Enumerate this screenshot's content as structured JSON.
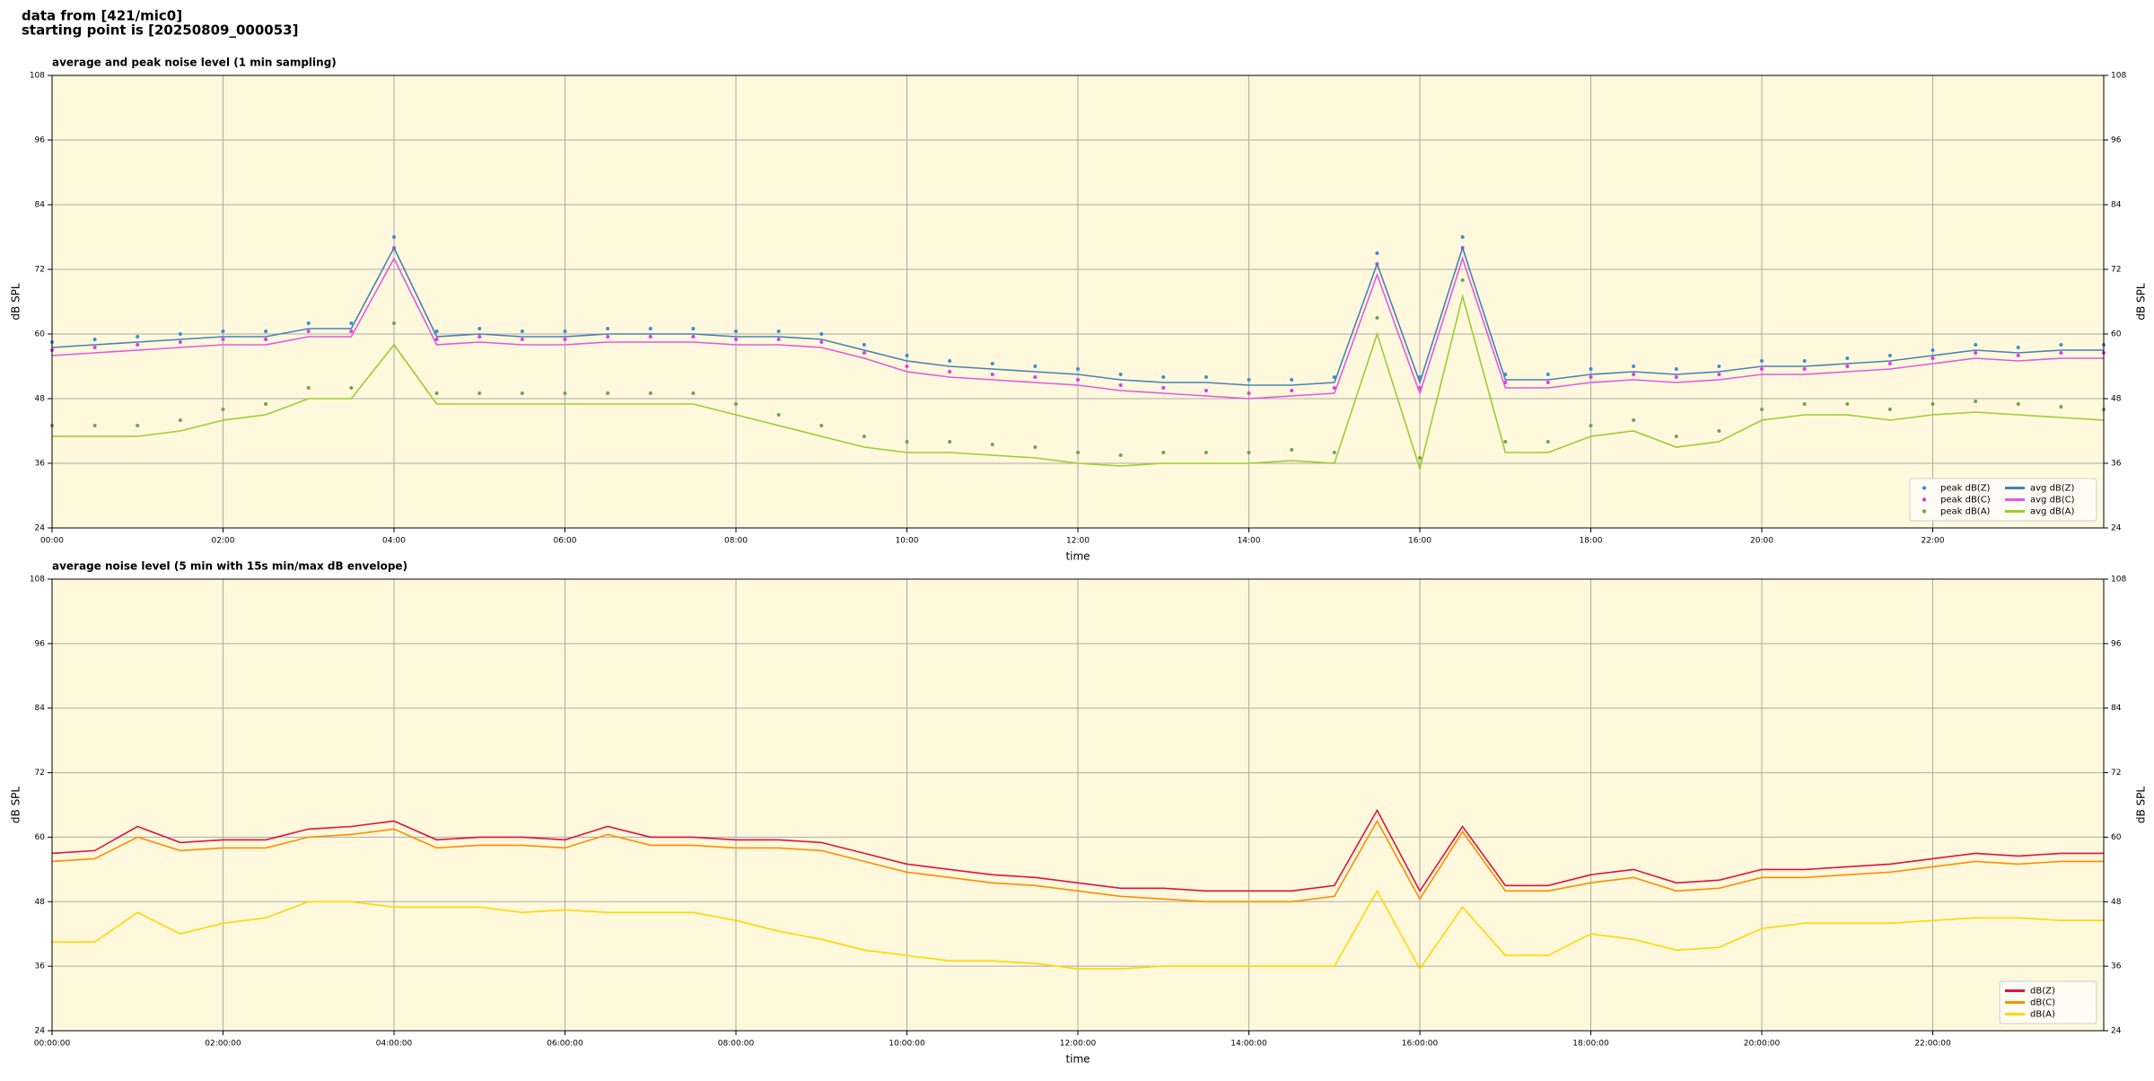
{
  "header": {
    "line1": "data from [421/mic0]",
    "line2": "starting point is [20250809_000053]"
  },
  "chart_data": [
    {
      "type": "line",
      "title": "average and peak noise level (1 min sampling)",
      "xlabel": "time",
      "ylabel": "dB SPL",
      "x": [
        0,
        0.5,
        1,
        1.5,
        2,
        2.5,
        3,
        3.5,
        4,
        4.5,
        5,
        5.5,
        6,
        6.5,
        7,
        7.5,
        8,
        8.5,
        9,
        9.5,
        10,
        10.5,
        11,
        11.5,
        12,
        12.5,
        13,
        13.5,
        14,
        14.5,
        15,
        15.5,
        16,
        16.5,
        17,
        17.5,
        18,
        18.5,
        19,
        19.5,
        20,
        20.5,
        21,
        21.5,
        22,
        22.5,
        23,
        23.5,
        24
      ],
      "xlim": [
        0,
        24
      ],
      "xticks": [
        {
          "value": 0,
          "label": "00:00"
        },
        {
          "value": 2,
          "label": "02:00"
        },
        {
          "value": 4,
          "label": "04:00"
        },
        {
          "value": 6,
          "label": "06:00"
        },
        {
          "value": 8,
          "label": "08:00"
        },
        {
          "value": 10,
          "label": "10:00"
        },
        {
          "value": 12,
          "label": "12:00"
        },
        {
          "value": 14,
          "label": "14:00"
        },
        {
          "value": 16,
          "label": "16:00"
        },
        {
          "value": 18,
          "label": "18:00"
        },
        {
          "value": 20,
          "label": "20:00"
        },
        {
          "value": 22,
          "label": "22:00"
        }
      ],
      "ylim": [
        24,
        108
      ],
      "yticks": [
        24,
        36,
        48,
        60,
        72,
        84,
        96,
        108
      ],
      "grid": true,
      "legend": "lower right",
      "series": [
        {
          "name": "peak dB(Z)",
          "style": "scatter",
          "color": "#3a8fd6",
          "values": [
            58.5,
            59,
            59.5,
            60,
            60.5,
            60.5,
            62,
            62,
            78,
            60.5,
            61,
            60.5,
            60.5,
            61,
            61,
            61,
            60.5,
            60.5,
            60,
            58,
            56,
            55,
            54.5,
            54,
            53.5,
            52.5,
            52,
            52,
            51.5,
            51.5,
            52,
            75,
            52,
            78,
            52.5,
            52.5,
            53.5,
            54,
            53.5,
            54,
            55,
            55,
            55.5,
            56,
            57,
            58,
            57.5,
            58,
            58
          ]
        },
        {
          "name": "peak dB(C)",
          "style": "scatter",
          "color": "#e838e8",
          "values": [
            57,
            57.5,
            58,
            58.5,
            59,
            59,
            60.5,
            60.5,
            76,
            59,
            59.5,
            59,
            59,
            59.5,
            59.5,
            59.5,
            59,
            59,
            58.5,
            56.5,
            54,
            53,
            52.5,
            52,
            51.5,
            50.5,
            50,
            49.5,
            49,
            49.5,
            50,
            73,
            50,
            76,
            51,
            51,
            52,
            52.5,
            52,
            52.5,
            53.5,
            53.5,
            54,
            54.5,
            55.5,
            56.5,
            56,
            56.5,
            56.5
          ]
        },
        {
          "name": "peak dB(A)",
          "style": "scatter",
          "color": "#6aa84f",
          "values": [
            43,
            43,
            43,
            44,
            46,
            47,
            50,
            50,
            62,
            49,
            49,
            49,
            49,
            49,
            49,
            49,
            47,
            45,
            43,
            41,
            40,
            40,
            39.5,
            39,
            38,
            37.5,
            38,
            38,
            38,
            38.5,
            38,
            63,
            37,
            70,
            40,
            40,
            43,
            44,
            41,
            42,
            46,
            47,
            47,
            46,
            47,
            47.5,
            47,
            46.5,
            46
          ]
        },
        {
          "name": "avg dB(Z)",
          "style": "line",
          "color": "#4682b4",
          "values": [
            57.5,
            58,
            58.5,
            59,
            59.5,
            59.5,
            61,
            61,
            76,
            59.5,
            60,
            59.5,
            59.5,
            60,
            60,
            60,
            59.5,
            59.5,
            59,
            57,
            55,
            54,
            53.5,
            53,
            52.5,
            51.5,
            51,
            51,
            50.5,
            50.5,
            51,
            73,
            51,
            76,
            51.5,
            51.5,
            52.5,
            53,
            52.5,
            53,
            54,
            54,
            54.5,
            55,
            56,
            57,
            56.5,
            57,
            57
          ]
        },
        {
          "name": "avg dB(C)",
          "style": "line",
          "color": "#e05ae0",
          "values": [
            56,
            56.5,
            57,
            57.5,
            58,
            58,
            59.5,
            59.5,
            74,
            58,
            58.5,
            58,
            58,
            58.5,
            58.5,
            58.5,
            58,
            58,
            57.5,
            55.5,
            53,
            52,
            51.5,
            51,
            50.5,
            49.5,
            49,
            48.5,
            48,
            48.5,
            49,
            71,
            49,
            74,
            50,
            50,
            51,
            51.5,
            51,
            51.5,
            52.5,
            52.5,
            53,
            53.5,
            54.5,
            55.5,
            55,
            55.5,
            55.5
          ]
        },
        {
          "name": "avg dB(A)",
          "style": "line",
          "color": "#9acd32",
          "values": [
            41,
            41,
            41,
            42,
            44,
            45,
            48,
            48,
            58,
            47,
            47,
            47,
            47,
            47,
            47,
            47,
            45,
            43,
            41,
            39,
            38,
            38,
            37.5,
            37,
            36,
            35.5,
            36,
            36,
            36,
            36.5,
            36,
            60,
            35,
            67,
            38,
            38,
            41,
            42,
            39,
            40,
            44,
            45,
            45,
            44,
            45,
            45.5,
            45,
            44.5,
            44
          ]
        }
      ]
    },
    {
      "type": "line",
      "title": "average noise level (5 min with 15s min/max dB envelope)",
      "xlabel": "time",
      "ylabel": "dB SPL",
      "x": [
        0,
        0.5,
        1,
        1.5,
        2,
        2.5,
        3,
        3.5,
        4,
        4.5,
        5,
        5.5,
        6,
        6.5,
        7,
        7.5,
        8,
        8.5,
        9,
        9.5,
        10,
        10.5,
        11,
        11.5,
        12,
        12.5,
        13,
        13.5,
        14,
        14.5,
        15,
        15.5,
        16,
        16.5,
        17,
        17.5,
        18,
        18.5,
        19,
        19.5,
        20,
        20.5,
        21,
        21.5,
        22,
        22.5,
        23,
        23.5,
        24
      ],
      "xlim": [
        0,
        24
      ],
      "xticks": [
        {
          "value": 0,
          "label": "00:00:00"
        },
        {
          "value": 2,
          "label": "02:00:00"
        },
        {
          "value": 4,
          "label": "04:00:00"
        },
        {
          "value": 6,
          "label": "06:00:00"
        },
        {
          "value": 8,
          "label": "08:00:00"
        },
        {
          "value": 10,
          "label": "10:00:00"
        },
        {
          "value": 12,
          "label": "12:00:00"
        },
        {
          "value": 14,
          "label": "14:00:00"
        },
        {
          "value": 16,
          "label": "16:00:00"
        },
        {
          "value": 18,
          "label": "18:00:00"
        },
        {
          "value": 20,
          "label": "20:00:00"
        },
        {
          "value": 22,
          "label": "22:00:00"
        }
      ],
      "ylim": [
        24,
        108
      ],
      "yticks": [
        24,
        36,
        48,
        60,
        72,
        84,
        96,
        108
      ],
      "grid": true,
      "legend": "lower right",
      "series": [
        {
          "name": "dB(Z)",
          "style": "line",
          "color": "#dc143c",
          "values": [
            57,
            57.5,
            62,
            59,
            59.5,
            59.5,
            61.5,
            62,
            63,
            59.5,
            60,
            60,
            59.5,
            62,
            60,
            60,
            59.5,
            59.5,
            59,
            57,
            55,
            54,
            53,
            52.5,
            51.5,
            50.5,
            50.5,
            50,
            50,
            50,
            51,
            65,
            50,
            62,
            51,
            51,
            53,
            54,
            51.5,
            52,
            54,
            54,
            54.5,
            55,
            56,
            57,
            56.5,
            57,
            57
          ]
        },
        {
          "name": "dB(C)",
          "style": "line",
          "color": "#ff8c00",
          "values": [
            55.5,
            56,
            60,
            57.5,
            58,
            58,
            60,
            60.5,
            61.5,
            58,
            58.5,
            58.5,
            58,
            60.5,
            58.5,
            58.5,
            58,
            58,
            57.5,
            55.5,
            53.5,
            52.5,
            51.5,
            51,
            50,
            49,
            48.5,
            48,
            48,
            48,
            49,
            63,
            48.5,
            61,
            50,
            50,
            51.5,
            52.5,
            50,
            50.5,
            52.5,
            52.5,
            53,
            53.5,
            54.5,
            55.5,
            55,
            55.5,
            55.5
          ]
        },
        {
          "name": "dB(A)",
          "style": "line",
          "color": "#ffd700",
          "values": [
            40.5,
            40.5,
            46,
            42,
            44,
            45,
            48,
            48,
            47,
            47,
            47,
            46,
            46.5,
            46,
            46,
            46,
            44.5,
            42.5,
            41,
            39,
            38,
            37,
            37,
            36.5,
            35.5,
            35.5,
            36,
            36,
            36,
            36,
            36,
            50,
            35.5,
            47,
            38,
            38,
            42,
            41,
            39,
            39.5,
            43,
            44,
            44,
            44,
            44.5,
            45,
            45,
            44.5,
            44.5
          ]
        }
      ]
    }
  ]
}
